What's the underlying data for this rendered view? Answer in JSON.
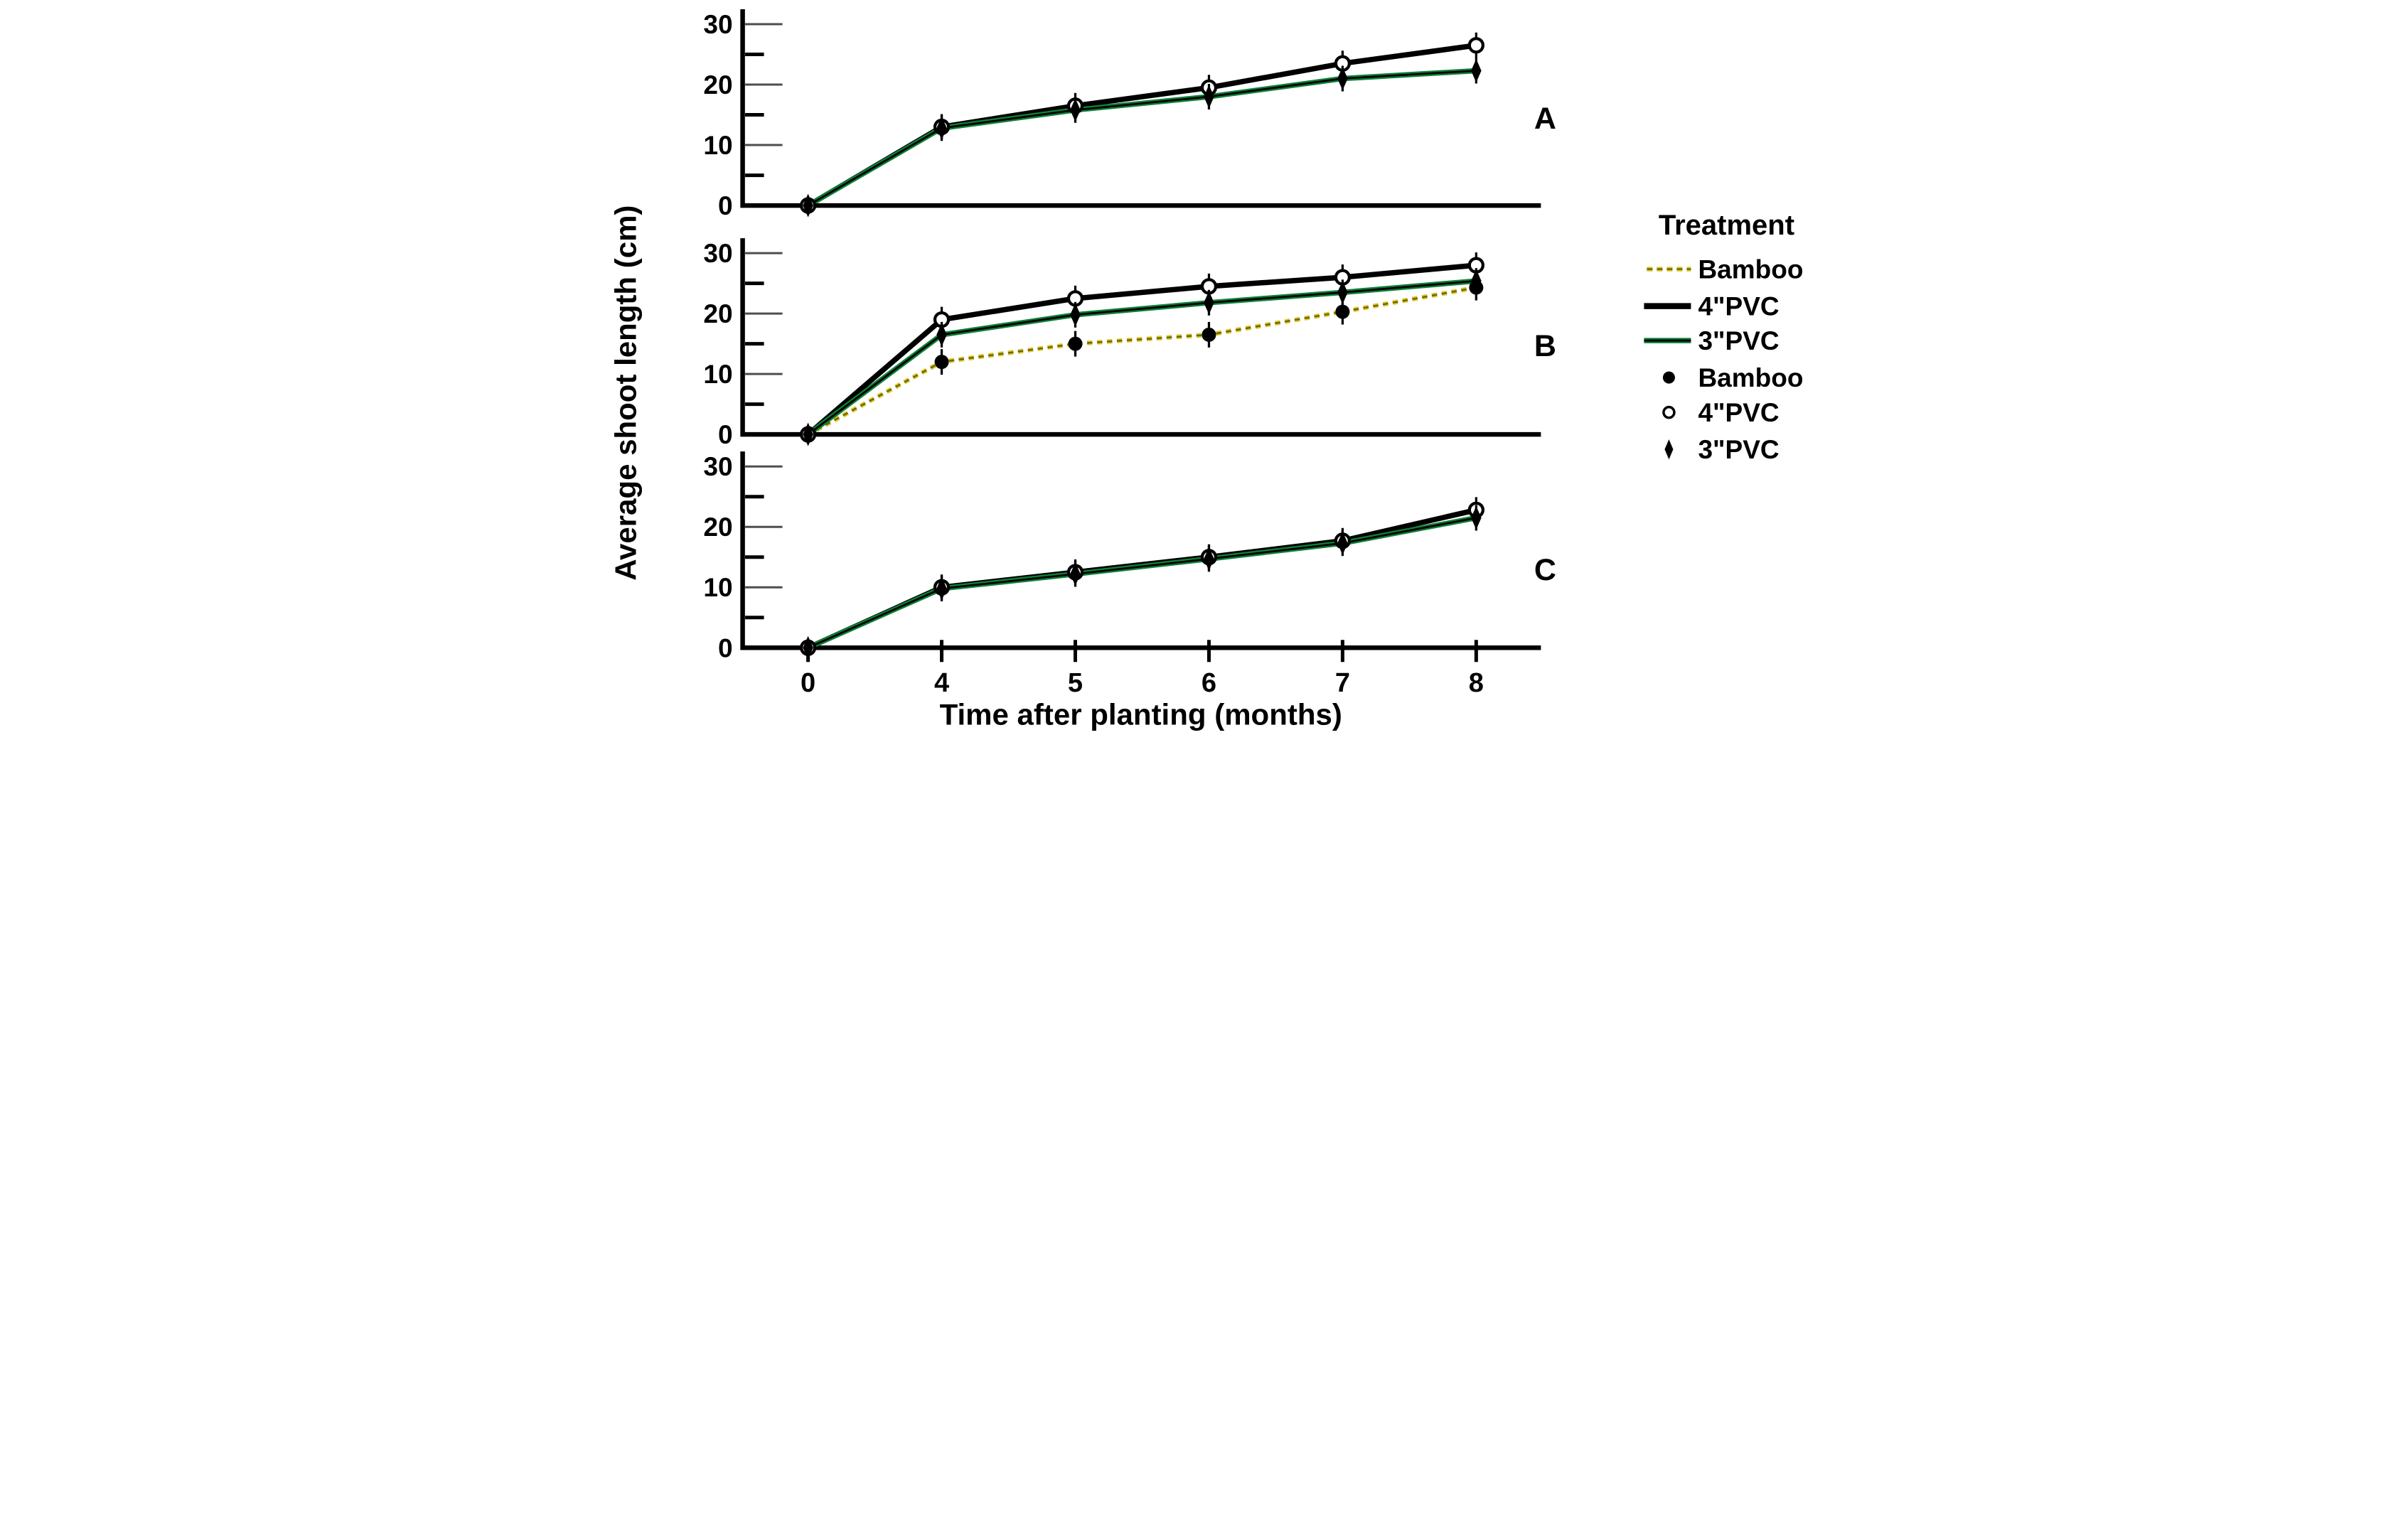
{
  "colors": {
    "pvc4_line": "#000000",
    "pvc3_line": "#0c8038",
    "pvc3_core": "#000000",
    "bamboo_line": "#d9c82f",
    "bamboo_core": "#6f6400",
    "axis": "#000000",
    "major_tick": "#4d4d4d",
    "background": "#ffffff"
  },
  "legend": {
    "title": "Treatment",
    "line_items": [
      {
        "label": "Bamboo",
        "style": "dashed-gold"
      },
      {
        "label": "4\"PVC",
        "style": "solid-black"
      },
      {
        "label": "3\"PVC",
        "style": "green-black-core"
      }
    ],
    "marker_items": [
      {
        "label": "Bamboo",
        "marker": "filled-circle"
      },
      {
        "label": "4\"PVC",
        "marker": "open-circle"
      },
      {
        "label": "3\"PVC",
        "marker": "diamond"
      }
    ]
  },
  "chart_data": {
    "type": "line",
    "x": [
      0,
      4,
      5,
      6,
      7,
      8
    ],
    "x_tick_labels": [
      "0",
      "4",
      "5",
      "6",
      "7",
      "8"
    ],
    "xlabel": "Time after planting (months)",
    "ylabel": "Average shoot length (cm)",
    "ylim": [
      0,
      30
    ],
    "y_ticks": [
      0,
      10,
      20,
      30
    ],
    "y_minor_ticks": [
      5,
      15,
      25
    ],
    "grid": false,
    "legend_position": "right",
    "panels": [
      {
        "label": "A",
        "series": [
          {
            "name": "4\"PVC",
            "slug": "pvc4",
            "line": "solid-black",
            "marker": "open-circle",
            "values": [
              0,
              13,
              16.5,
              19.5,
              23.5,
              26.5
            ]
          },
          {
            "name": "3\"PVC",
            "slug": "pvc3",
            "line": "green-black-core",
            "marker": "diamond",
            "values": [
              0,
              12.8,
              15.8,
              18,
              21,
              22.3
            ]
          }
        ]
      },
      {
        "label": "B",
        "series": [
          {
            "name": "Bamboo",
            "slug": "bamboo",
            "line": "dashed-gold",
            "marker": "filled-circle",
            "values": [
              0,
              12,
              15,
              16.5,
              20.3,
              24.3
            ]
          },
          {
            "name": "4\"PVC",
            "slug": "pvc4",
            "line": "solid-black",
            "marker": "open-circle",
            "values": [
              0,
              19,
              22.5,
              24.5,
              26,
              28
            ]
          },
          {
            "name": "3\"PVC",
            "slug": "pvc3",
            "line": "green-black-core",
            "marker": "diamond",
            "values": [
              0,
              16.5,
              19.8,
              21.8,
              23.5,
              25.4
            ]
          }
        ]
      },
      {
        "label": "C",
        "series": [
          {
            "name": "4\"PVC",
            "slug": "pvc4",
            "line": "solid-black",
            "marker": "open-circle",
            "values": [
              0,
              10,
              12.5,
              15,
              17.7,
              22.8
            ]
          },
          {
            "name": "3\"PVC",
            "slug": "pvc3",
            "line": "green-black-core",
            "marker": "diamond",
            "values": [
              0,
              9.8,
              12.2,
              14.7,
              17.3,
              21.5
            ]
          }
        ]
      }
    ]
  }
}
